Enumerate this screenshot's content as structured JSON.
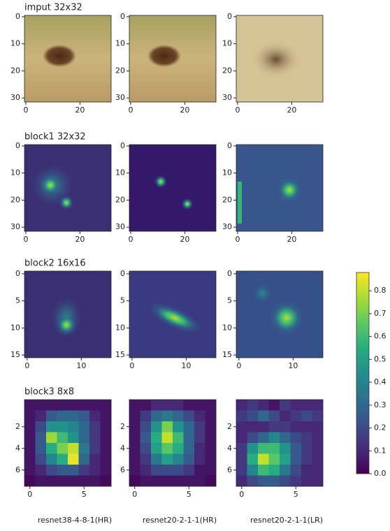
{
  "chart_data": [
    {
      "type": "image",
      "title": "imput 32x32",
      "xlim": [
        -0.5,
        31.5
      ],
      "ylim": [
        31.5,
        -0.5
      ],
      "xticks": [
        0,
        20
      ],
      "yticks": [
        0,
        10,
        20,
        30
      ]
    },
    {
      "type": "image",
      "xlim": [
        -0.5,
        31.5
      ],
      "ylim": [
        31.5,
        -0.5
      ],
      "xticks": [
        0,
        20
      ],
      "yticks": [
        0,
        10,
        20,
        30
      ]
    },
    {
      "type": "image",
      "xlim": [
        -0.5,
        31.5
      ],
      "ylim": [
        31.5,
        -0.5
      ],
      "xticks": [
        0,
        20
      ],
      "yticks": [
        0,
        10,
        20,
        30
      ]
    },
    {
      "type": "image",
      "title": "block1 32x32",
      "xlim": [
        -0.5,
        31.5
      ],
      "ylim": [
        31.5,
        -0.5
      ],
      "xticks": [
        0,
        20
      ],
      "yticks": [
        0,
        10,
        20,
        30
      ]
    },
    {
      "type": "image",
      "xlim": [
        -0.5,
        31.5
      ],
      "ylim": [
        31.5,
        -0.5
      ],
      "xticks": [
        0,
        20
      ],
      "yticks": [
        0,
        10,
        20,
        30
      ]
    },
    {
      "type": "image",
      "xlim": [
        -0.5,
        31.5
      ],
      "ylim": [
        31.5,
        -0.5
      ],
      "xticks": [
        0,
        20
      ],
      "yticks": [
        0,
        10,
        20,
        30
      ]
    },
    {
      "type": "image",
      "title": "block2 16x16",
      "xlim": [
        -0.5,
        15.5
      ],
      "ylim": [
        15.5,
        -0.5
      ],
      "xticks": [
        0,
        10
      ],
      "yticks": [
        0,
        5,
        10,
        15
      ]
    },
    {
      "type": "image",
      "xlim": [
        -0.5,
        15.5
      ],
      "ylim": [
        15.5,
        -0.5
      ],
      "xticks": [
        0,
        10
      ],
      "yticks": [
        0,
        5,
        10,
        15
      ]
    },
    {
      "type": "image",
      "xlim": [
        -0.5,
        15.5
      ],
      "ylim": [
        15.5,
        -0.5
      ],
      "xticks": [
        0,
        10
      ],
      "yticks": [
        0,
        5,
        10,
        15
      ]
    },
    {
      "type": "heatmap",
      "title": "block3 8x8",
      "xlabel": "resnet38-4-8-1(HR)",
      "colormap": "viridis",
      "xlim": [
        -0.5,
        7.5
      ],
      "ylim": [
        7.5,
        -0.5
      ],
      "xticks": [
        0,
        5
      ],
      "yticks": [
        2,
        4,
        6
      ],
      "values": [
        [
          0.05,
          0.05,
          0.05,
          0.05,
          0.05,
          0.05,
          0.05,
          0.05
        ],
        [
          0.05,
          0.1,
          0.25,
          0.3,
          0.3,
          0.25,
          0.1,
          0.05
        ],
        [
          0.05,
          0.2,
          0.45,
          0.45,
          0.4,
          0.3,
          0.15,
          0.05
        ],
        [
          0.05,
          0.25,
          0.75,
          0.6,
          0.45,
          0.3,
          0.15,
          0.05
        ],
        [
          0.05,
          0.25,
          0.55,
          0.7,
          0.8,
          0.35,
          0.15,
          0.05
        ],
        [
          0.05,
          0.2,
          0.4,
          0.55,
          0.85,
          0.3,
          0.1,
          0.05
        ],
        [
          0.05,
          0.1,
          0.2,
          0.25,
          0.25,
          0.15,
          0.1,
          0.05
        ],
        [
          0.02,
          0.05,
          0.05,
          0.05,
          0.05,
          0.05,
          0.05,
          0.02
        ]
      ]
    },
    {
      "type": "heatmap",
      "xlabel": "resnet20-2-1-1(HR)",
      "colormap": "viridis",
      "xlim": [
        -0.5,
        7.5
      ],
      "ylim": [
        7.5,
        -0.5
      ],
      "xticks": [
        0,
        5
      ],
      "yticks": [
        2,
        4,
        6
      ],
      "values": [
        [
          0.05,
          0.05,
          0.1,
          0.1,
          0.1,
          0.05,
          0.05,
          0.05
        ],
        [
          0.05,
          0.15,
          0.3,
          0.35,
          0.3,
          0.2,
          0.1,
          0.05
        ],
        [
          0.05,
          0.2,
          0.45,
          0.7,
          0.45,
          0.3,
          0.15,
          0.05
        ],
        [
          0.05,
          0.25,
          0.55,
          0.8,
          0.6,
          0.3,
          0.15,
          0.05
        ],
        [
          0.05,
          0.2,
          0.5,
          0.65,
          0.55,
          0.3,
          0.1,
          0.05
        ],
        [
          0.05,
          0.15,
          0.35,
          0.5,
          0.4,
          0.25,
          0.1,
          0.05
        ],
        [
          0.05,
          0.1,
          0.2,
          0.2,
          0.2,
          0.15,
          0.05,
          0.05
        ],
        [
          0.02,
          0.05,
          0.05,
          0.05,
          0.05,
          0.05,
          0.05,
          0.02
        ]
      ]
    },
    {
      "type": "heatmap",
      "xlabel": "resnet20-2-1-1(LR)",
      "colormap": "viridis",
      "xlim": [
        -0.5,
        7.5
      ],
      "ylim": [
        7.5,
        -0.5
      ],
      "xticks": [
        0,
        5
      ],
      "yticks": [
        2,
        4,
        6
      ],
      "values": [
        [
          0.1,
          0.15,
          0.1,
          0.05,
          0.15,
          0.1,
          0.1,
          0.1
        ],
        [
          0.15,
          0.2,
          0.3,
          0.2,
          0.1,
          0.15,
          0.2,
          0.15
        ],
        [
          0.1,
          0.1,
          0.1,
          0.15,
          0.15,
          0.1,
          0.1,
          0.1
        ],
        [
          0.1,
          0.2,
          0.3,
          0.4,
          0.3,
          0.2,
          0.15,
          0.1
        ],
        [
          0.15,
          0.45,
          0.6,
          0.6,
          0.45,
          0.25,
          0.15,
          0.1
        ],
        [
          0.15,
          0.55,
          0.8,
          0.65,
          0.5,
          0.25,
          0.15,
          0.1
        ],
        [
          0.15,
          0.4,
          0.6,
          0.55,
          0.35,
          0.2,
          0.1,
          0.1
        ],
        [
          0.1,
          0.2,
          0.25,
          0.25,
          0.2,
          0.15,
          0.1,
          0.1
        ]
      ]
    },
    {
      "type": "colorbar",
      "colormap": "viridis",
      "ylim": [
        0,
        0.88
      ],
      "yticks": [
        {
          "value": 0,
          "label": "0.0"
        },
        0.1,
        0.2,
        0.3,
        0.4,
        0.5,
        0.6,
        0.7,
        0.8
      ]
    }
  ]
}
